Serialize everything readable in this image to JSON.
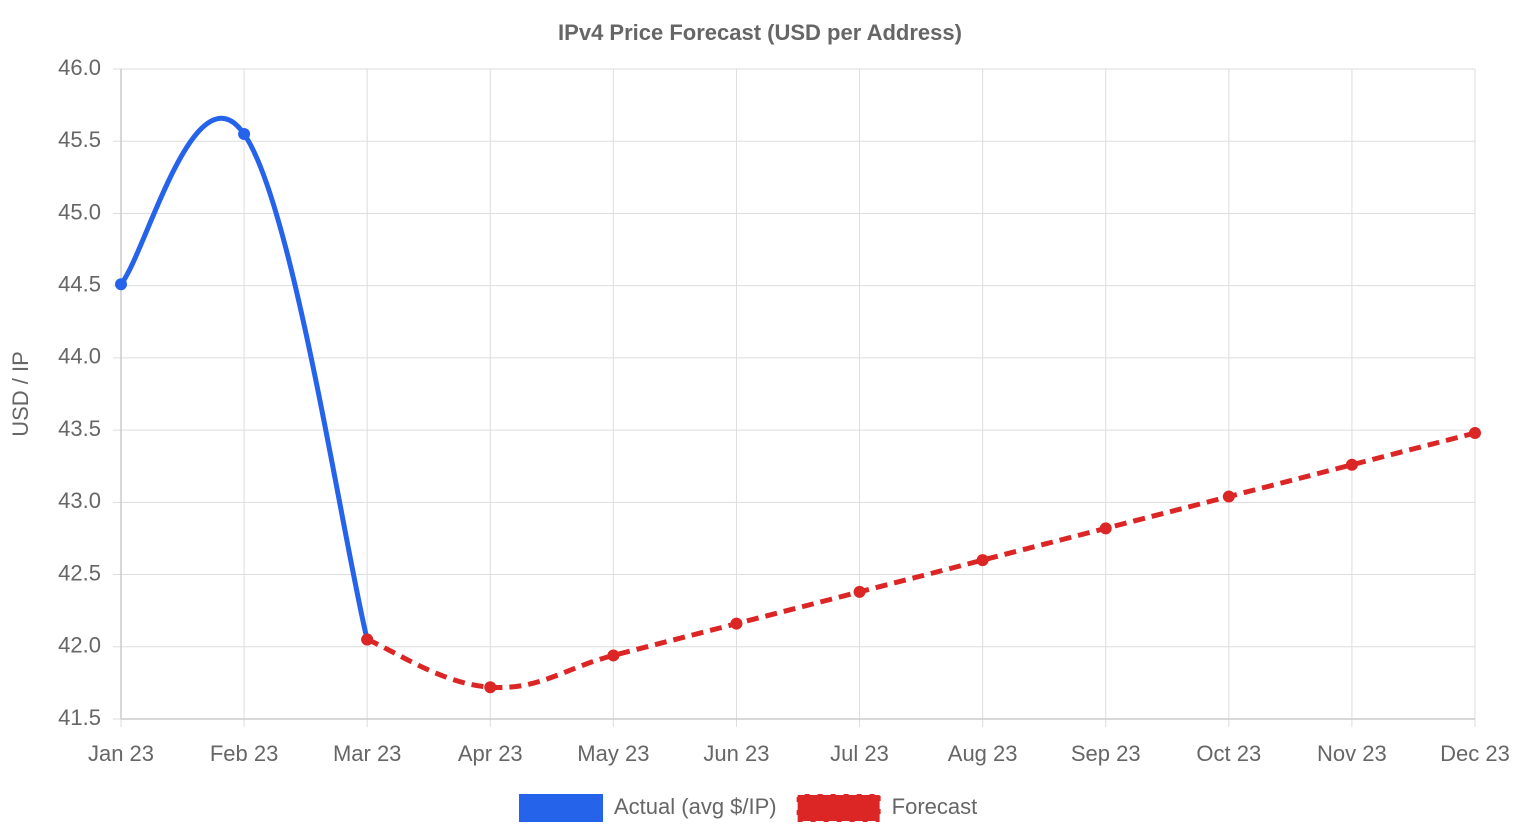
{
  "chart_data": {
    "type": "line",
    "title": "IPv4 Price Forecast (USD per Address)",
    "y_label": "USD / IP",
    "categories": [
      "Jan 23",
      "Feb 23",
      "Mar 23",
      "Apr 23",
      "May 23",
      "Jun 23",
      "Jul 23",
      "Aug 23",
      "Sep 23",
      "Oct 23",
      "Nov 23",
      "Dec 23"
    ],
    "series": [
      {
        "name": "Actual (avg $/IP)",
        "color": "#2563eb",
        "dashed": false,
        "values": [
          44.51,
          45.55,
          42.05,
          null,
          null,
          null,
          null,
          null,
          null,
          null,
          null,
          null
        ]
      },
      {
        "name": "Forecast",
        "color": "#dc2626",
        "dashed": true,
        "values": [
          null,
          null,
          42.05,
          41.72,
          41.94,
          42.16,
          42.38,
          42.6,
          42.82,
          43.04,
          43.26,
          43.48
        ]
      }
    ],
    "ylim": [
      41.5,
      46
    ],
    "yticks": [
      41.5,
      {
        "value": 42,
        "label": "42.0"
      },
      42.5,
      {
        "value": 43,
        "label": "43.0"
      },
      43.5,
      {
        "value": 44,
        "label": "44.0"
      },
      44.5,
      {
        "value": 45,
        "label": "45.0"
      },
      45.5,
      {
        "value": 46,
        "label": "46.0"
      }
    ],
    "grid": true,
    "legend": "bottom"
  }
}
